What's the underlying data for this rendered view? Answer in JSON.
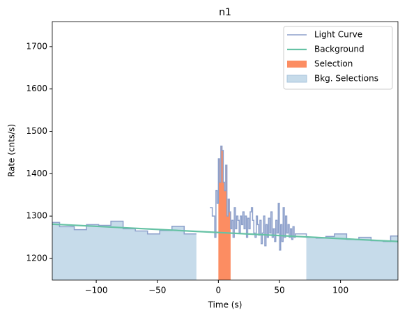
{
  "chart_data": {
    "type": "step",
    "title": "n1",
    "xlabel": "Time (s)",
    "ylabel": "Rate (cnts/s)",
    "xlim": [
      -136,
      147
    ],
    "ylim": [
      1149,
      1759
    ],
    "xticks": [
      {
        "value": -100,
        "label": "−100"
      },
      {
        "value": -50,
        "label": "−50"
      },
      0,
      50,
      100
    ],
    "yticks": [
      1200,
      1300,
      1400,
      1500,
      1600,
      1700
    ],
    "legend": "upper right",
    "series": [
      {
        "name": "Light Curve",
        "color": "#8da0cb",
        "x": [
          -136,
          -130,
          -118,
          -108,
          -98,
          -88,
          -78,
          -68,
          -58,
          -48,
          -38,
          -28,
          -18,
          -7,
          -5,
          -3,
          -2,
          -1,
          0,
          1,
          2,
          3,
          4,
          5,
          6,
          7,
          8,
          9,
          10,
          11,
          12,
          13,
          14,
          15,
          16,
          17,
          18,
          19,
          20,
          21,
          22,
          23,
          24,
          25,
          26,
          27,
          28,
          29,
          30,
          31,
          32,
          33,
          34,
          35,
          36,
          37,
          38,
          39,
          40,
          41,
          42,
          43,
          44,
          45,
          46,
          47,
          48,
          49,
          50,
          51,
          52,
          53,
          54,
          55,
          56,
          57,
          58,
          59,
          60,
          61,
          62,
          63,
          72,
          80,
          88,
          95,
          105,
          115,
          125,
          135,
          141
        ],
        "values": [
          1285,
          1275,
          1268,
          1280,
          1278,
          1288,
          1270,
          1265,
          1258,
          1266,
          1276,
          1258,
          null,
          1320,
          1300,
          1250,
          1360,
          1330,
          1435,
          1380,
          1465,
          1455,
          1380,
          1360,
          1420,
          1300,
          1340,
          1310,
          1270,
          1290,
          1250,
          1320,
          1270,
          1300,
          1290,
          1260,
          1300,
          1280,
          1310,
          1270,
          1300,
          1250,
          1295,
          1270,
          1310,
          1320,
          1290,
          1260,
          1250,
          1300,
          1280,
          1255,
          1290,
          1235,
          1260,
          1300,
          1230,
          1280,
          1250,
          1295,
          1260,
          1310,
          1250,
          1270,
          1240,
          1290,
          1260,
          1330,
          1220,
          1280,
          1240,
          1320,
          1250,
          1300,
          1260,
          1280,
          1250,
          1270,
          1245,
          1275,
          1250,
          1258,
          1250,
          1248,
          1252,
          1258,
          1245,
          1250,
          1242,
          1240,
          1253
        ]
      },
      {
        "name": "Background",
        "color": "#66c2a5",
        "x": [
          -136,
          147
        ],
        "values": [
          1281,
          1240
        ]
      }
    ],
    "selection": {
      "name": "Selection",
      "color": "#fc8d62",
      "ranges": [
        [
          0,
          10
        ]
      ]
    },
    "bkg_selections": {
      "name": "Bkg. Selections",
      "color": "#c6dbea",
      "ranges": [
        [
          -136,
          -18
        ],
        [
          72,
          147
        ]
      ]
    }
  }
}
